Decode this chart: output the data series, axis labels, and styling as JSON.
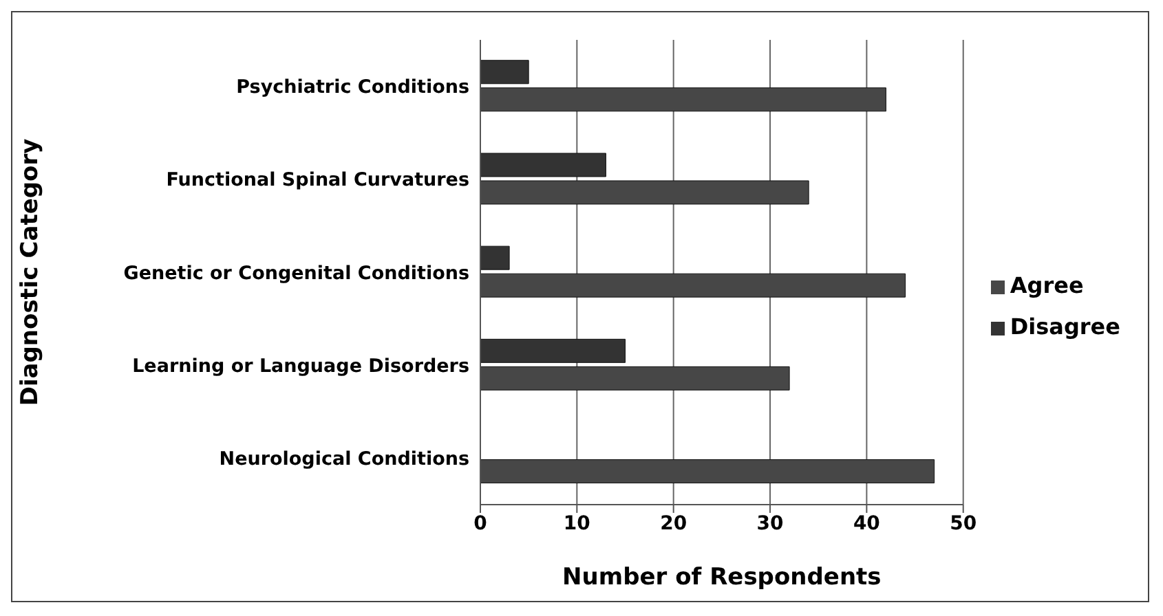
{
  "chart_data": {
    "type": "bar",
    "orientation": "horizontal",
    "xlabel": "Number of Respondents",
    "ylabel": "Diagnostic Category",
    "categories": [
      "Psychiatric Conditions",
      "Functional Spinal Curvatures",
      "Genetic or Congenital Conditions",
      "Learning or Language Disorders",
      "Neurological Conditions"
    ],
    "series": [
      {
        "name": "Disagree",
        "color": "#333333",
        "values": [
          5,
          13,
          3,
          15,
          0
        ]
      },
      {
        "name": "Agree",
        "color": "#474747",
        "values": [
          42,
          34,
          44,
          32,
          47
        ]
      }
    ],
    "xlim": [
      0,
      50
    ],
    "xticks": [
      0,
      10,
      20,
      30,
      40,
      50
    ],
    "grid": "x",
    "legend": "right"
  }
}
